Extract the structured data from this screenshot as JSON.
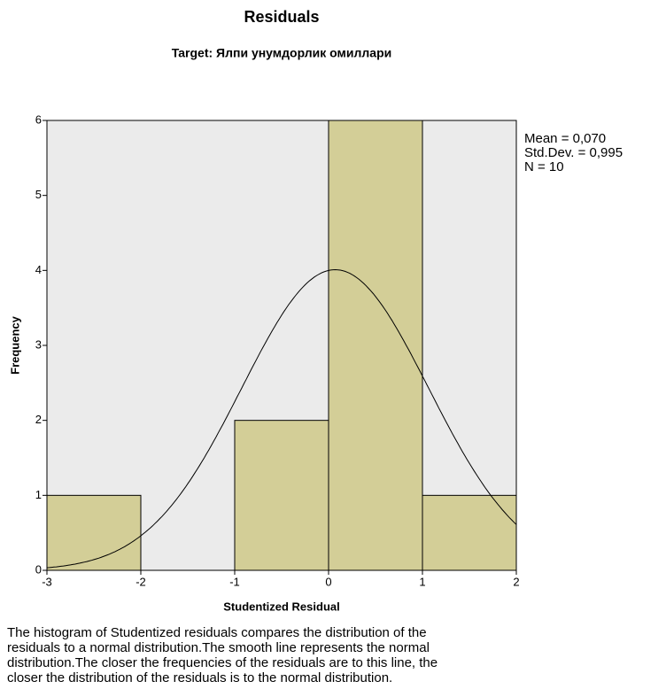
{
  "chart_data": {
    "type": "histogram",
    "title": "Residuals",
    "subtitle": "Target: Ялпи унумдорлик омиллари",
    "x_label": "Studentized Residual",
    "y_label": "Frequency",
    "bins": [
      -3,
      -2,
      -1,
      0,
      1,
      2
    ],
    "values": [
      1,
      0,
      2,
      6,
      1
    ],
    "color": "#d3ce97",
    "plot_background": "#ebebeb",
    "xlim": [
      -3,
      2
    ],
    "xticks": [
      -3,
      -2,
      -1,
      0,
      1,
      2
    ],
    "ylim": [
      0,
      6
    ],
    "yticks": [
      0,
      1,
      2,
      3,
      4,
      5,
      6
    ],
    "stats_labels": [
      "Mean = 0,070",
      "Std.Dev. = 0,995",
      "N = 10"
    ],
    "normal_curve": {
      "mean": 0.07,
      "std_dev": 0.995,
      "n": 10
    },
    "caption": [
      "The histogram of Studentized residuals compares the distribution of the",
      "residuals to a normal distribution.The smooth line represents the normal",
      "distribution.The closer the frequencies of the residuals are to this line, the",
      "closer the distribution of the residuals is to the normal distribution."
    ]
  }
}
